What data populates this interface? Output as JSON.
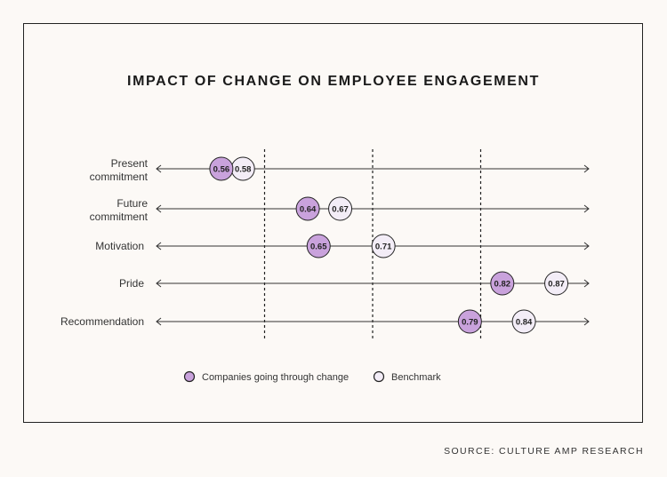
{
  "chart_data": {
    "type": "dot-plot",
    "title": "IMPACT OF CHANGE ON EMPLOYEE ENGAGEMENT",
    "categories": [
      [
        "Present",
        "commitment"
      ],
      [
        "Future",
        "commitment"
      ],
      [
        "Motivation"
      ],
      [
        "Pride"
      ],
      [
        "Recommendation"
      ]
    ],
    "series": [
      {
        "name": "Companies going through change",
        "values": [
          0.56,
          0.64,
          0.65,
          0.82,
          0.79
        ],
        "color": "#c9a2dc"
      },
      {
        "name": "Benchmark",
        "values": [
          0.58,
          0.67,
          0.71,
          0.87,
          0.84
        ],
        "color": "#f3edf7"
      }
    ],
    "xlim": [
      0.5,
      0.9
    ],
    "reference_lines": [
      0.6,
      0.7,
      0.8
    ],
    "legend_position": "bottom",
    "source": "SOURCE: CULTURE AMP RESEARCH"
  }
}
